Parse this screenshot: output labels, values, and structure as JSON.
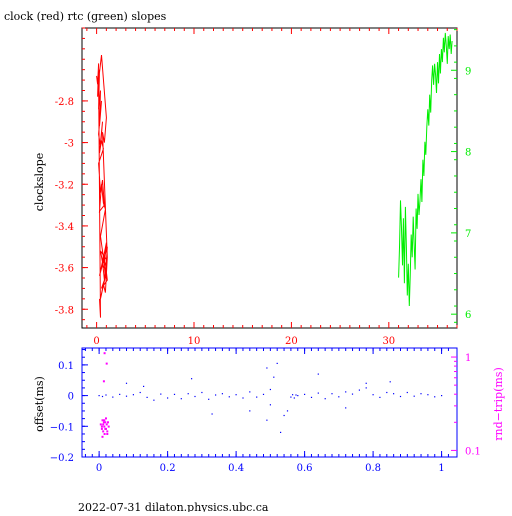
{
  "title": "clock (red) rtc (green) slopes",
  "footer": "2022-07-31  dilaton.physics.ubc.ca",
  "colors": {
    "clock": "#ff0000",
    "rtc": "#00ee00",
    "offset": "#0000ff",
    "rtt": "#ff00ff",
    "axis": "#000000"
  },
  "chart_data": [
    {
      "type": "line",
      "title": "clock (red) rtc (green) slopes",
      "ylabel": "clockslope",
      "xlim": [
        -1.5,
        37
      ],
      "ylim": [
        -3.89,
        -2.45
      ],
      "y2lim": [
        5.83,
        9.52
      ],
      "x_ticks": [
        0,
        10,
        20,
        30
      ],
      "y_ticks": [
        -3.8,
        -3.6,
        -3.4,
        -3.2,
        -3,
        -2.8
      ],
      "y2_ticks": [
        6,
        7,
        8,
        9
      ],
      "x_tick_labels": [
        "0",
        "10",
        "20",
        "30"
      ],
      "y_tick_labels": [
        "-3.8",
        "-3.6",
        "-3.4",
        "-3.2",
        "-3",
        "-2.8"
      ],
      "y2_tick_labels": [
        "6",
        "7",
        "8",
        "9"
      ],
      "series": [
        {
          "color": "#ff0000",
          "axis": "left",
          "x": [
            0.0,
            0.1,
            0.2,
            0.1,
            0.3,
            0.2,
            0.4,
            0.3,
            0.5,
            0.2,
            0.4,
            0.6,
            0.3,
            0.5,
            0.7,
            0.2,
            0.4,
            0.6,
            0.8,
            0.3,
            0.5,
            0.7,
            0.9,
            0.4,
            0.6,
            0.8,
            1.0,
            0.5,
            0.7,
            0.9,
            1.1,
            0.3,
            0.6,
            0.8,
            1.0,
            0.4,
            0.7,
            0.9,
            1.1,
            0.5,
            0.8,
            1.0,
            0.4,
            0.7,
            0.9,
            1.1,
            0.6,
            0.8,
            1.0,
            0.5,
            0.2,
            0.4,
            0.3
          ],
          "y": [
            -2.68,
            -2.72,
            -2.62,
            -2.78,
            -2.65,
            -2.84,
            -2.75,
            -2.92,
            -2.8,
            -2.96,
            -3.02,
            -2.9,
            -3.05,
            -2.99,
            -3.03,
            -3.1,
            -3.24,
            -3.18,
            -3.3,
            -3.33,
            -3.2,
            -3.29,
            -3.32,
            -3.45,
            -3.52,
            -3.58,
            -3.48,
            -3.6,
            -3.54,
            -3.65,
            -3.5,
            -3.64,
            -3.57,
            -3.66,
            -3.56,
            -3.52,
            -3.6,
            -3.58,
            -3.66,
            -3.7,
            -3.66,
            -3.62,
            -3.75,
            -3.68,
            -3.72,
            -3.55,
            -2.95,
            -3.0,
            -2.88,
            -2.58,
            -2.7,
            -3.84,
            -3.75
          ]
        },
        {
          "color": "#00ee00",
          "axis": "right",
          "x": [
            31.0,
            31.1,
            31.2,
            31.3,
            31.4,
            31.5,
            31.6,
            31.7,
            31.8,
            31.9,
            32.0,
            32.1,
            32.2,
            32.3,
            32.4,
            32.5,
            32.6,
            32.7,
            32.8,
            32.9,
            33.0,
            33.1,
            33.2,
            33.3,
            33.4,
            33.5,
            33.6,
            33.7,
            33.8,
            33.9,
            34.0,
            34.1,
            34.2,
            34.3,
            34.4,
            34.5,
            34.6,
            34.7,
            34.8,
            34.9,
            35.0,
            35.1,
            35.2,
            35.3,
            35.4,
            35.5,
            35.6,
            35.7,
            35.8,
            35.9,
            36.0,
            36.1,
            36.2,
            36.3,
            36.4,
            36.5
          ],
          "y": [
            6.45,
            6.82,
            7.4,
            7.05,
            6.6,
            7.18,
            6.38,
            7.32,
            6.82,
            6.23,
            6.62,
            6.1,
            6.46,
            6.98,
            6.7,
            7.2,
            6.88,
            6.55,
            7.3,
            7.05,
            7.48,
            7.22,
            7.4,
            7.66,
            7.38,
            7.9,
            7.7,
            8.12,
            7.96,
            8.3,
            8.52,
            8.32,
            8.7,
            8.48,
            8.88,
            9.06,
            8.82,
            9.08,
            8.94,
            8.72,
            9.1,
            8.84,
            9.2,
            8.96,
            9.26,
            9.1,
            9.4,
            9.22,
            9.46,
            9.3,
            9.08,
            9.42,
            9.26,
            9.44,
            9.2,
            9.36
          ]
        }
      ]
    },
    {
      "type": "scatter",
      "ylabel": "offset(ms)",
      "y2label": "rnd−trip(ms)",
      "xlim": [
        -0.05,
        1.045
      ],
      "ylim": [
        -0.2,
        0.155
      ],
      "y2_log": true,
      "y2lim": [
        0.085,
        1.25
      ],
      "x_ticks": [
        0,
        0.2,
        0.4,
        0.6,
        0.8,
        1
      ],
      "y_ticks": [
        -0.2,
        -0.1,
        0,
        0.1
      ],
      "y2_ticks": [
        0.1,
        1
      ],
      "x_tick_labels": [
        "0",
        "0.2",
        "0.4",
        "0.6",
        "0.8",
        "1"
      ],
      "y_tick_labels": [
        "−0.2",
        "−0.1",
        "0",
        "0.1"
      ],
      "y2_tick_labels": [
        "0.1",
        "1"
      ],
      "series": [
        {
          "color": "#0000ff",
          "axis": "left",
          "x": [
            0.0,
            0.01,
            0.02,
            0.04,
            0.06,
            0.08,
            0.1,
            0.12,
            0.14,
            0.16,
            0.18,
            0.2,
            0.22,
            0.24,
            0.26,
            0.28,
            0.3,
            0.32,
            0.34,
            0.36,
            0.38,
            0.4,
            0.42,
            0.44,
            0.46,
            0.48,
            0.5,
            0.5,
            0.51,
            0.52,
            0.54,
            0.55,
            0.56,
            0.565,
            0.57,
            0.575,
            0.58,
            0.6,
            0.62,
            0.64,
            0.66,
            0.68,
            0.7,
            0.72,
            0.74,
            0.76,
            0.78,
            0.8,
            0.82,
            0.84,
            0.86,
            0.88,
            0.9,
            0.92,
            0.94,
            0.96,
            0.98,
            1.0,
            0.27,
            0.08,
            0.49,
            0.49,
            0.53,
            0.13,
            0.33,
            0.64,
            0.72,
            0.85,
            0.44,
            0.78
          ],
          "y": [
            0.0,
            -0.003,
            0.002,
            -0.005,
            0.004,
            -0.002,
            0.003,
            0.01,
            -0.006,
            -0.015,
            0.005,
            -0.008,
            0.004,
            -0.01,
            0.006,
            -0.003,
            0.01,
            -0.012,
            0.002,
            0.006,
            -0.004,
            0.003,
            -0.008,
            0.012,
            -0.005,
            0.004,
            0.02,
            -0.03,
            0.06,
            0.105,
            -0.065,
            -0.05,
            -0.005,
            0.003,
            -0.008,
            0.002,
            0.0,
            0.004,
            -0.006,
            0.008,
            -0.01,
            0.006,
            -0.004,
            0.012,
            0.005,
            0.018,
            0.025,
            0.003,
            -0.006,
            0.01,
            0.006,
            -0.003,
            0.01,
            -0.002,
            0.006,
            0.003,
            -0.004,
            0.0,
            0.055,
            0.04,
            -0.08,
            0.09,
            -0.12,
            0.03,
            -0.06,
            0.07,
            -0.04,
            0.045,
            -0.05,
            0.04
          ]
        },
        {
          "color": "#ff00ff",
          "axis": "right",
          "x": [
            0.005,
            0.008,
            0.01,
            0.012,
            0.014,
            0.015,
            0.016,
            0.018,
            0.02,
            0.022,
            0.024,
            0.026,
            0.028,
            0.01,
            0.015,
            0.02,
            0.012,
            0.018,
            0.024,
            0.008,
            0.016,
            0.022,
            0.014
          ],
          "y": [
            0.19,
            0.17,
            0.21,
            0.16,
            0.2,
            0.18,
            0.15,
            0.17,
            0.22,
            0.19,
            0.16,
            0.2,
            0.18,
            0.14,
            0.21,
            0.17,
            0.19,
            0.2,
            0.15,
            0.18,
            1.1,
            0.85,
            0.55
          ]
        }
      ]
    }
  ]
}
